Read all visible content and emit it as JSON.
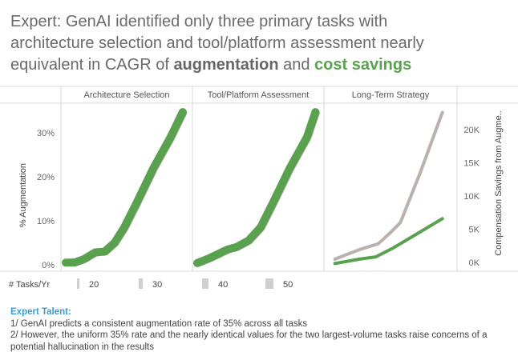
{
  "title": {
    "line1": "Expert: GenAI identified only three primary tasks with",
    "line2": "architecture selection and tool/platform assessment nearly",
    "line3_prefix": "equivalent in CAGR of ",
    "augmentation": "augmentation",
    "and": " and ",
    "cost_savings": "cost savings"
  },
  "colors": {
    "augmentation": "#59a14f",
    "cost_savings": "#bab0ac",
    "axis": "#d9d9d9",
    "title_accent": "#59a14f",
    "note_heading": "#3b9bd6"
  },
  "chart_data": {
    "type": "line",
    "panels": [
      "Architecture Selection",
      "Tool/Platform Assessment",
      "Long-Term Strategy"
    ],
    "ylabel_left": "% Augmentation",
    "ylabel_right": "Compensation Savings from Augme..",
    "y_left_ticks": [
      "0%",
      "10%",
      "20%",
      "30%"
    ],
    "y_left_lim": [
      0,
      36
    ],
    "y_right_ticks": [
      "0K",
      "5K",
      "10K",
      "15K",
      "20K"
    ],
    "y_right_lim": [
      0,
      23500
    ],
    "legend": {
      "label": "# Tasks/Yr",
      "sizes": [
        "20",
        "30",
        "40",
        "50"
      ]
    },
    "series": [
      {
        "panel": "Architecture Selection",
        "measure": "augmentation",
        "points": [
          [
            0,
            0.5
          ],
          [
            0.07,
            0.5
          ],
          [
            0.15,
            1.3
          ],
          [
            0.24,
            2.8
          ],
          [
            0.32,
            3.0
          ],
          [
            0.4,
            5.0
          ],
          [
            0.48,
            8.5
          ],
          [
            0.58,
            14
          ],
          [
            0.72,
            22
          ],
          [
            0.86,
            29
          ],
          [
            0.96,
            34.7
          ]
        ]
      },
      {
        "panel": "Tool/Platform Assessment",
        "measure": "augmentation",
        "points": [
          [
            0,
            0.4
          ],
          [
            0.1,
            1.5
          ],
          [
            0.25,
            3.5
          ],
          [
            0.32,
            4.0
          ],
          [
            0.42,
            5.5
          ],
          [
            0.52,
            8.5
          ],
          [
            0.62,
            14
          ],
          [
            0.76,
            22
          ],
          [
            0.9,
            29
          ],
          [
            0.97,
            34.7
          ]
        ]
      },
      {
        "panel": "Long-Term Strategy",
        "measure": "augmentation",
        "points": [
          [
            0.05,
            0.3
          ],
          [
            0.25,
            1.3
          ],
          [
            0.38,
            1.8
          ],
          [
            0.52,
            3.8
          ],
          [
            0.7,
            6.8
          ],
          [
            0.92,
            10.5
          ]
        ]
      },
      {
        "panel": "Long-Term Strategy",
        "measure": "cost_savings",
        "points": [
          [
            0.05,
            500
          ],
          [
            0.26,
            2000
          ],
          [
            0.4,
            2800
          ],
          [
            0.5,
            4500
          ],
          [
            0.58,
            6000
          ],
          [
            0.74,
            13500
          ],
          [
            0.92,
            22600
          ]
        ]
      }
    ]
  },
  "notes": {
    "heading": "Expert Talent:",
    "line1": "1/ GenAI predicts a consistent augmentation rate of 35% across all tasks",
    "line2": "2/ However, the uniform 35% rate and the nearly identical values for the two largest-volume tasks raise concerns of a potential hallucination in the results"
  }
}
